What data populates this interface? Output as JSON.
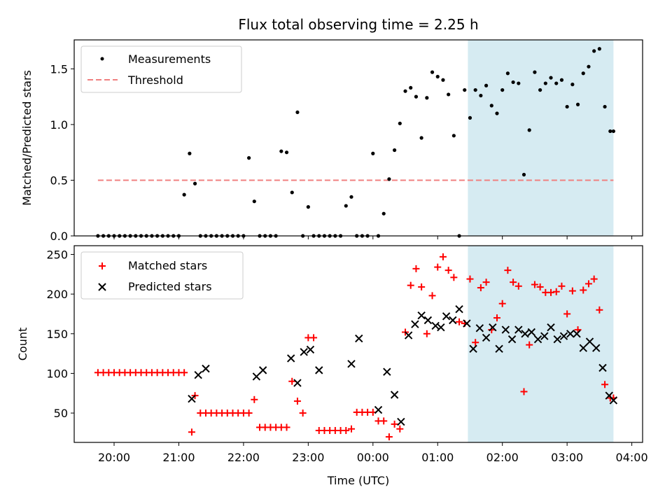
{
  "chart_data": [
    {
      "type": "scatter",
      "title": "Flux total observing time = 2.25 h",
      "xlabel": "",
      "ylabel": "Matched/Predicted stars",
      "ylim": [
        0,
        1.76
      ],
      "yticks": [
        "0.0",
        "0.5",
        "1.0",
        "1.5"
      ],
      "legend": {
        "position": "top-left",
        "entries": [
          "Measurements",
          "Threshold"
        ]
      },
      "threshold": {
        "value": 0.5,
        "x_start": "19:45",
        "x_end": "03:43",
        "color": "#f08080"
      },
      "shaded_region": {
        "x_start": "01:28",
        "x_end": "03:43",
        "color": "#add8e6"
      },
      "series": [
        {
          "name": "Measurements",
          "color": "#000000",
          "x": [
            "19:45",
            "19:50",
            "19:55",
            "20:00",
            "20:05",
            "20:10",
            "20:15",
            "20:20",
            "20:25",
            "20:30",
            "20:35",
            "20:40",
            "20:45",
            "20:50",
            "20:55",
            "21:00",
            "21:05",
            "21:10",
            "21:15",
            "21:20",
            "21:25",
            "21:30",
            "21:35",
            "21:40",
            "21:45",
            "21:50",
            "21:55",
            "22:00",
            "22:05",
            "22:10",
            "22:15",
            "22:20",
            "22:25",
            "22:30",
            "22:35",
            "22:40",
            "22:45",
            "22:50",
            "22:55",
            "23:00",
            "23:05",
            "23:10",
            "23:15",
            "23:20",
            "23:25",
            "23:30",
            "23:35",
            "23:40",
            "23:45",
            "23:50",
            "23:55",
            "00:00",
            "00:05",
            "00:10",
            "00:15",
            "00:20",
            "00:25",
            "00:30",
            "00:35",
            "00:40",
            "00:45",
            "00:50",
            "00:55",
            "01:00",
            "01:05",
            "01:10",
            "01:15",
            "01:20",
            "01:25",
            "01:30",
            "01:35",
            "01:40",
            "01:45",
            "01:50",
            "01:55",
            "02:00",
            "02:05",
            "02:10",
            "02:15",
            "02:20",
            "02:25",
            "02:30",
            "02:35",
            "02:40",
            "02:45",
            "02:50",
            "02:55",
            "03:00",
            "03:05",
            "03:10",
            "03:15",
            "03:20",
            "03:25",
            "03:30",
            "03:35",
            "03:40",
            "03:43"
          ],
          "y": [
            0,
            0,
            0,
            0,
            0,
            0,
            0,
            0,
            0,
            0,
            0,
            0,
            0,
            0,
            0,
            0,
            0.37,
            0.74,
            0.47,
            0,
            0,
            0,
            0,
            0,
            0,
            0,
            0,
            0,
            0.7,
            0.31,
            0,
            0,
            0,
            0,
            0.76,
            0.75,
            0.39,
            1.11,
            0,
            0.26,
            0,
            0,
            0,
            0,
            0,
            0,
            0.27,
            0.35,
            0,
            0,
            0,
            0.74,
            0,
            0.2,
            0.51,
            0.77,
            1.01,
            1.3,
            1.33,
            1.25,
            0.88,
            1.24,
            1.47,
            1.43,
            1.4,
            1.27,
            0.9,
            0,
            1.31,
            1.06,
            1.31,
            1.26,
            1.35,
            1.17,
            1.1,
            1.31,
            1.46,
            1.38,
            1.37,
            0.55,
            0.95,
            1.47,
            1.31,
            1.37,
            1.42,
            1.37,
            1.4,
            1.16,
            1.36,
            1.18,
            1.46,
            1.52,
            1.66,
            1.68,
            1.16,
            0.94,
            0.94
          ]
        }
      ]
    },
    {
      "type": "scatter",
      "title": "",
      "xlabel": "Time (UTC)",
      "ylabel": "Count",
      "xlim": [
        "19:23",
        "04:10"
      ],
      "ylim": [
        13,
        261
      ],
      "xticks": [
        "20:00",
        "21:00",
        "22:00",
        "23:00",
        "00:00",
        "01:00",
        "02:00",
        "03:00",
        "04:00"
      ],
      "yticks": [
        "50",
        "100",
        "150",
        "200",
        "250"
      ],
      "legend": {
        "position": "top-left",
        "entries": [
          "Matched stars",
          "Predicted stars"
        ]
      },
      "shaded_region": {
        "x_start": "01:28",
        "x_end": "03:43",
        "color": "#add8e6"
      },
      "series": [
        {
          "name": "Matched stars",
          "color": "#ff0000",
          "marker": "+",
          "x": [
            "19:45",
            "19:50",
            "19:55",
            "20:00",
            "20:05",
            "20:10",
            "20:15",
            "20:20",
            "20:25",
            "20:30",
            "20:35",
            "20:40",
            "20:45",
            "20:50",
            "20:55",
            "21:00",
            "21:05",
            "21:12",
            "21:15",
            "21:20",
            "21:25",
            "21:30",
            "21:35",
            "21:40",
            "21:45",
            "21:50",
            "21:55",
            "22:00",
            "22:05",
            "22:10",
            "22:15",
            "22:20",
            "22:25",
            "22:30",
            "22:35",
            "22:40",
            "22:45",
            "22:50",
            "22:55",
            "23:00",
            "23:05",
            "23:10",
            "23:15",
            "23:20",
            "23:25",
            "23:30",
            "23:35",
            "23:40",
            "23:45",
            "23:50",
            "23:55",
            "00:00",
            "00:05",
            "00:10",
            "00:15",
            "00:20",
            "00:25",
            "00:30",
            "00:35",
            "00:40",
            "00:45",
            "00:50",
            "00:55",
            "01:00",
            "01:05",
            "01:10",
            "01:15",
            "01:20",
            "01:25",
            "01:30",
            "01:35",
            "01:40",
            "01:45",
            "01:50",
            "01:55",
            "02:00",
            "02:05",
            "02:10",
            "02:15",
            "02:20",
            "02:25",
            "02:30",
            "02:35",
            "02:40",
            "02:45",
            "02:50",
            "02:55",
            "03:00",
            "03:05",
            "03:10",
            "03:15",
            "03:20",
            "03:25",
            "03:30",
            "03:35",
            "03:40",
            "03:43"
          ],
          "y": [
            101,
            101,
            101,
            101,
            101,
            101,
            101,
            101,
            101,
            101,
            101,
            101,
            101,
            101,
            101,
            101,
            101,
            26,
            72,
            50,
            50,
            50,
            50,
            50,
            50,
            50,
            50,
            50,
            50,
            67,
            32,
            32,
            32,
            32,
            32,
            32,
            90,
            65,
            50,
            145,
            145,
            28,
            28,
            28,
            28,
            28,
            28,
            30,
            51,
            51,
            51,
            51,
            40,
            40,
            20,
            36,
            30,
            152,
            211,
            232,
            209,
            150,
            198,
            234,
            247,
            230,
            221,
            165,
            163,
            219,
            139,
            208,
            215,
            155,
            170,
            188,
            230,
            215,
            210,
            77,
            136,
            212,
            209,
            202,
            202,
            203,
            210,
            175,
            204,
            155,
            205,
            213,
            219,
            180,
            86,
            69,
            69
          ]
        },
        {
          "name": "Predicted stars",
          "color": "#000000",
          "marker": "x",
          "x": [
            "21:12",
            "21:18",
            "21:25",
            "22:12",
            "22:18",
            "22:44",
            "22:50",
            "22:56",
            "23:02",
            "23:10",
            "23:40",
            "23:47",
            "00:05",
            "00:13",
            "00:20",
            "00:26",
            "00:33",
            "00:39",
            "00:45",
            "00:51",
            "00:58",
            "01:03",
            "01:08",
            "01:14",
            "01:20",
            "01:27",
            "01:33",
            "01:39",
            "01:45",
            "01:51",
            "01:57",
            "02:03",
            "02:09",
            "02:15",
            "02:21",
            "02:27",
            "02:33",
            "02:39",
            "02:45",
            "02:51",
            "02:57",
            "03:03",
            "03:09",
            "03:15",
            "03:21",
            "03:27",
            "03:33",
            "03:39",
            "03:43"
          ],
          "y": [
            68,
            98,
            106,
            96,
            104,
            119,
            88,
            127,
            130,
            104,
            112,
            144,
            54,
            102,
            73,
            39,
            148,
            162,
            173,
            167,
            160,
            158,
            172,
            167,
            181,
            163,
            131,
            157,
            145,
            158,
            131,
            155,
            143,
            155,
            150,
            152,
            143,
            147,
            158,
            143,
            147,
            150,
            150,
            132,
            140,
            132,
            107,
            72,
            66
          ]
        }
      ]
    }
  ]
}
